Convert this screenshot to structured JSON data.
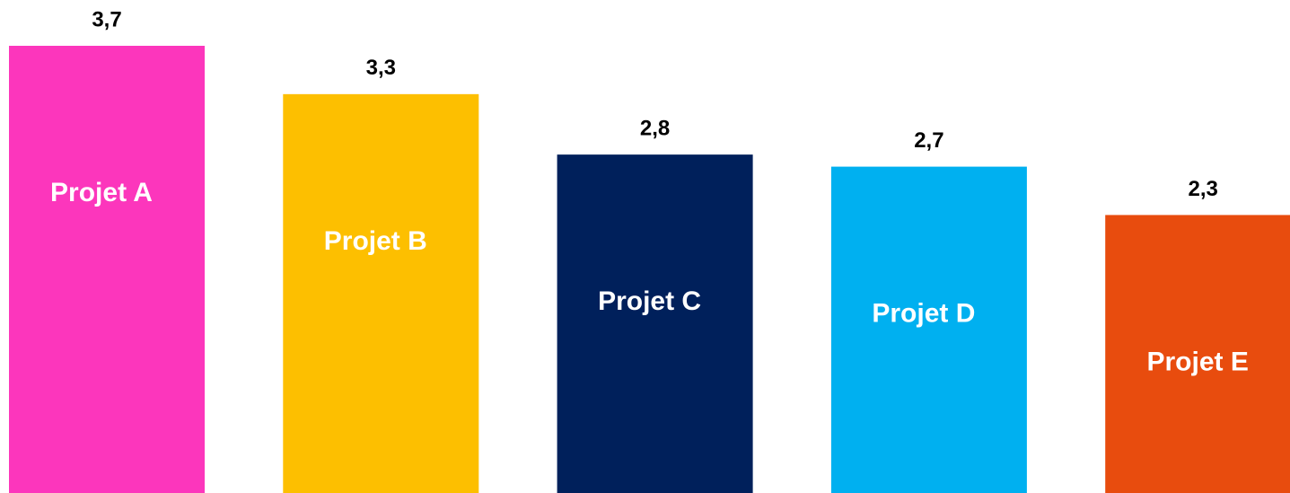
{
  "chart_data": {
    "type": "bar",
    "categories": [
      "Projet A",
      "Projet B",
      "Projet C",
      "Projet D",
      "Projet E"
    ],
    "values": [
      3.7,
      3.3,
      2.8,
      2.7,
      2.3
    ],
    "value_labels": [
      "3,7",
      "3,3",
      "2,8",
      "2,7",
      "2,3"
    ],
    "colors": [
      "#fc36bc",
      "#fdbf00",
      "#00205b",
      "#00b0f0",
      "#e84c0e"
    ]
  }
}
